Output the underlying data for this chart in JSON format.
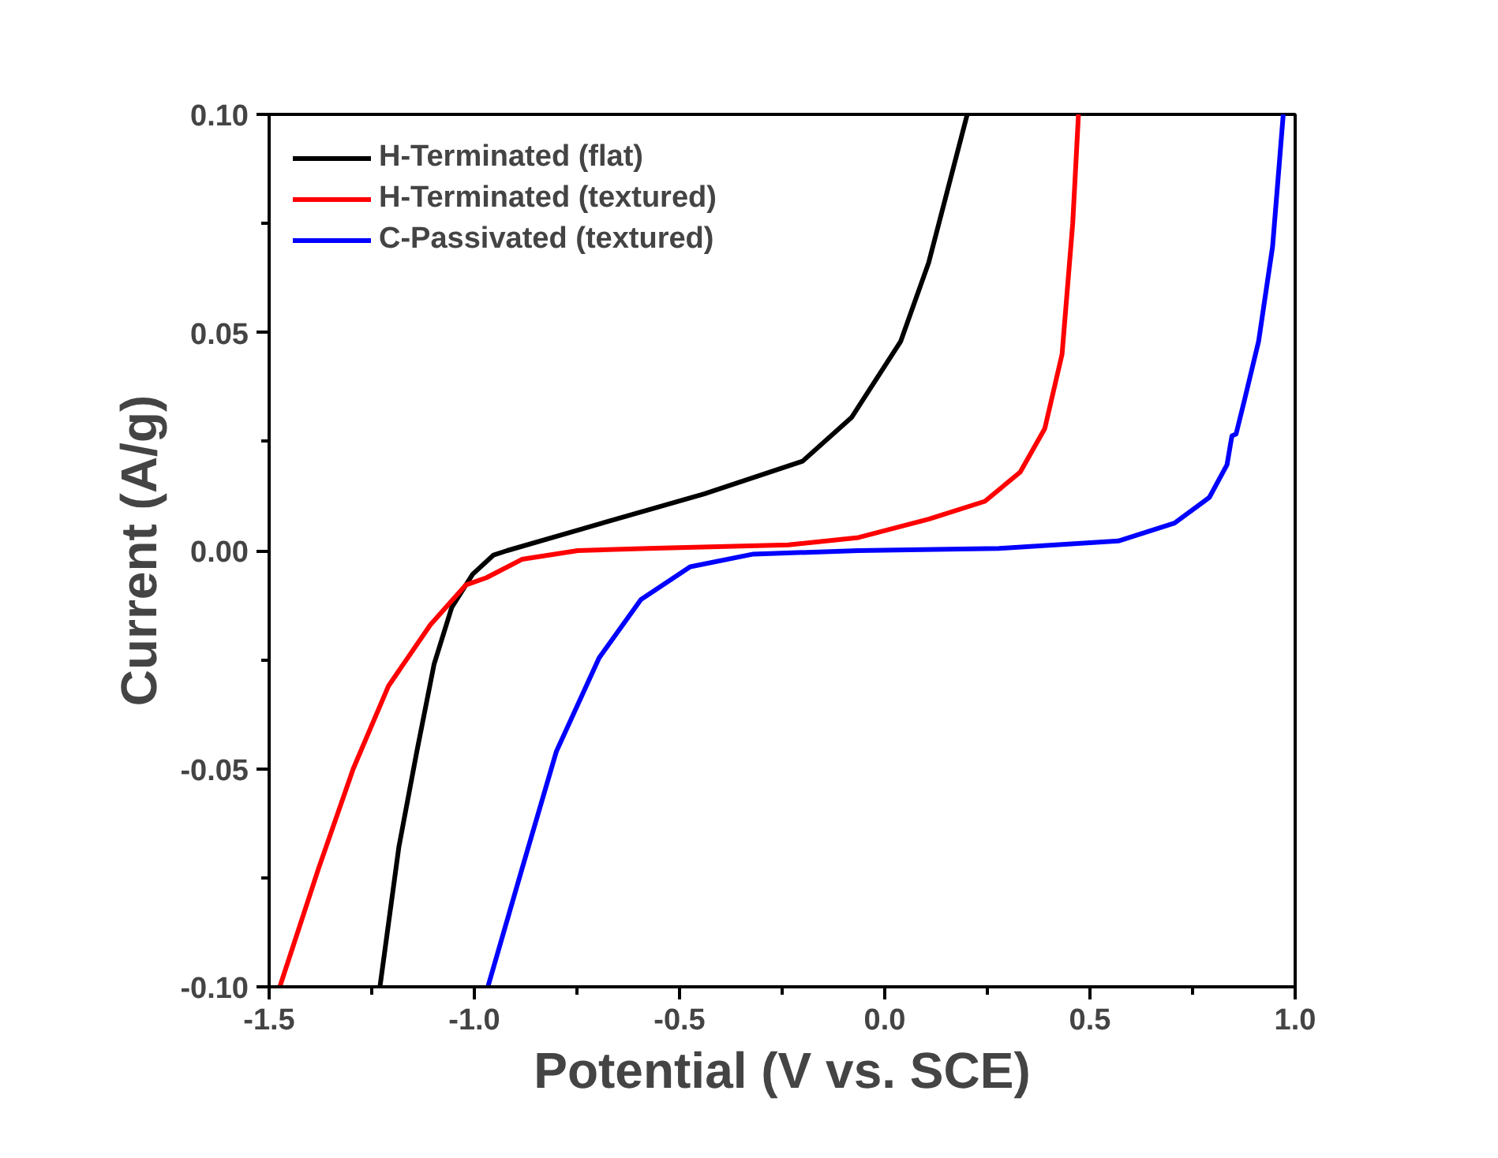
{
  "chart_data": {
    "type": "line",
    "xlabel": "Potential (V vs. SCE)",
    "ylabel": "Current (A/g)",
    "xlim": [
      -1.5,
      1.0
    ],
    "ylim": [
      -0.1,
      0.1
    ],
    "xticks": [
      {
        "value": -1.5,
        "label": "-1.5"
      },
      {
        "value": -1.0,
        "label": "-1.0"
      },
      {
        "value": -0.5,
        "label": "-0.5"
      },
      {
        "value": 0,
        "label": "0.0"
      },
      {
        "value": 0.5,
        "label": "0.5"
      },
      {
        "value": 1.0,
        "label": "1.0"
      }
    ],
    "yticks": [
      {
        "value": -0.1,
        "label": "-0.10"
      },
      {
        "value": -0.05,
        "label": "-0.05"
      },
      {
        "value": 0,
        "label": "0.00"
      },
      {
        "value": 0.05,
        "label": "0.05"
      },
      {
        "value": 0.1,
        "label": "0.10"
      }
    ],
    "grid": false,
    "legend": "top left",
    "line_style": "solid",
    "marker": "none",
    "series": [
      {
        "name": "H-Terminated (flat)",
        "color": "#000000",
        "x": [
          -1.23,
          -1.184,
          -1.14,
          -1.098,
          -1.055,
          -1.004,
          -0.953,
          -0.92,
          -0.748,
          -0.44,
          -0.2,
          -0.081,
          0.039,
          0.107,
          0.201
        ],
        "values": [
          -0.1,
          -0.068,
          -0.046,
          -0.026,
          -0.013,
          -0.0054,
          -0.001,
          0.0,
          0.0047,
          0.013,
          0.0205,
          0.0305,
          0.048,
          0.066,
          0.1
        ]
      },
      {
        "name": "H-Terminated (textured)",
        "color": "#ff0000",
        "x": [
          -1.474,
          -1.38,
          -1.295,
          -1.209,
          -1.107,
          -1.021,
          -0.97,
          -0.884,
          -0.748,
          -0.577,
          -0.235,
          -0.064,
          0.107,
          0.244,
          0.33,
          0.39,
          0.432,
          0.458,
          0.472
        ],
        "values": [
          -0.1,
          -0.073,
          -0.05,
          -0.031,
          -0.017,
          -0.0079,
          -0.0062,
          -0.002,
          0.0,
          0.0005,
          0.0013,
          0.003,
          0.0072,
          0.0113,
          0.018,
          0.028,
          0.045,
          0.075,
          0.1
        ]
      },
      {
        "name": "C-Passivated (textured)",
        "color": "#0000ff",
        "x": [
          -0.967,
          -0.884,
          -0.8,
          -0.696,
          -0.594,
          -0.474,
          -0.32,
          -0.064,
          0.278,
          0.569,
          0.706,
          0.791,
          0.834,
          0.843,
          0.846,
          0.856,
          0.877,
          0.911,
          0.945,
          0.971
        ],
        "values": [
          -0.1,
          -0.073,
          -0.046,
          -0.0246,
          -0.0112,
          -0.0037,
          -0.0008,
          0.0,
          0.0005,
          0.0022,
          0.0063,
          0.0122,
          0.0197,
          0.0247,
          0.0263,
          0.0267,
          0.0347,
          0.048,
          0.0697,
          0.1
        ]
      }
    ]
  }
}
